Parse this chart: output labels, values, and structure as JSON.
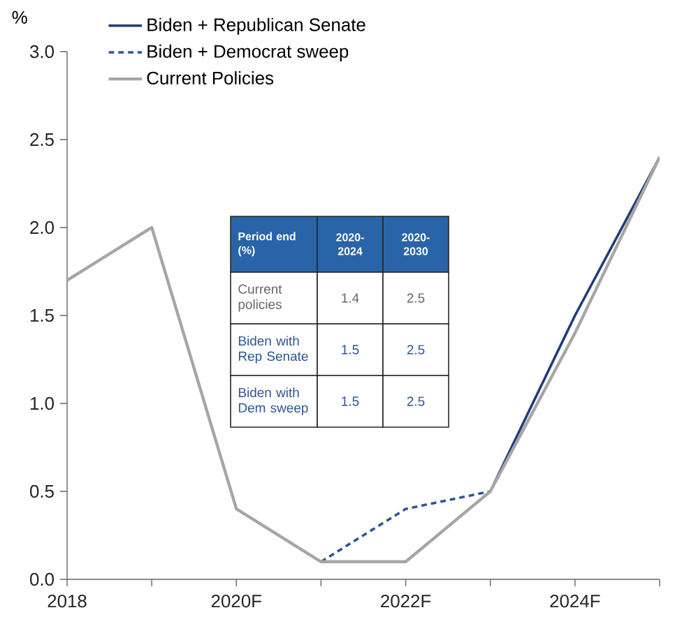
{
  "chart_data": {
    "type": "line",
    "ylabel": "%",
    "x": [
      2018,
      2019,
      2020,
      2021,
      2022,
      2023,
      2024,
      2025
    ],
    "series": [
      {
        "name": "Biden + Republican Senate",
        "color": "#1f3d7a",
        "line_style": "solid",
        "values": [
          null,
          null,
          null,
          null,
          null,
          0.5,
          1.5,
          2.4
        ]
      },
      {
        "name": "Biden + Democrat sweep",
        "color": "#2e5597",
        "line_style": "dashed",
        "values": [
          null,
          null,
          null,
          0.1,
          0.4,
          0.5,
          null,
          null
        ]
      },
      {
        "name": "Current Policies",
        "color": "#a6a6a6",
        "line_style": "solid",
        "values": [
          1.7,
          2.0,
          0.4,
          0.1,
          0.1,
          0.5,
          1.4,
          2.4
        ]
      }
    ],
    "xlim": [
      2018,
      2025
    ],
    "xticks": [
      2018,
      {
        "value": 2019,
        "label": null
      },
      {
        "value": 2020,
        "label": "2020F"
      },
      {
        "value": 2021,
        "label": null
      },
      {
        "value": 2022,
        "label": "2022F"
      },
      {
        "value": 2023,
        "label": null
      },
      {
        "value": 2024,
        "label": "2024F"
      },
      {
        "value": 2025,
        "label": null
      }
    ],
    "ylim": [
      0,
      3.0
    ],
    "yticks": [
      {
        "value": 0,
        "label": "0.0"
      },
      {
        "value": 0.5,
        "label": "0.5"
      },
      {
        "value": 1,
        "label": "1.0"
      },
      {
        "value": 1.5,
        "label": "1.5"
      },
      {
        "value": 2,
        "label": "2.0"
      },
      {
        "value": 2.5,
        "label": "2.5"
      },
      {
        "value": 3,
        "label": "3.0"
      }
    ],
    "grid": false,
    "legend": "top left",
    "marker": "none",
    "annotations": [
      "Period end (%)",
      "2020-2024",
      "2020-2030",
      "Current policies",
      "1.4",
      "2.5",
      "Biden with Rep Senate",
      "1.5",
      "2.5",
      "Biden with Dem sweep",
      "1.5",
      "2.5"
    ]
  }
}
